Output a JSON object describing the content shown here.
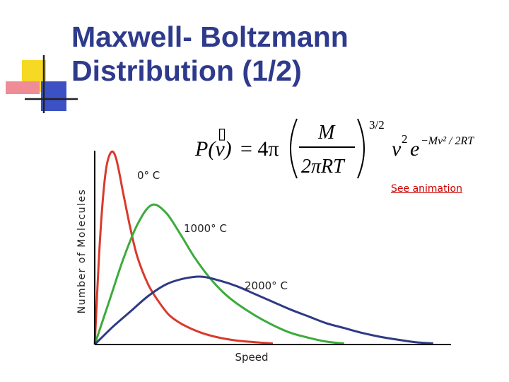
{
  "slide": {
    "title_line1": "Maxwell- Boltzmann",
    "title_line2": "Distribution (1/2)",
    "link_text": "See animation"
  },
  "formula": {
    "lhs": "P(v)",
    "equals": "= 4π",
    "numerator": "M",
    "denominator": "2πRT",
    "exponent": "3/2",
    "v_squared": "v",
    "v_exp": "2",
    "e": "e",
    "e_exp": "−Mv² / 2RT",
    "placeholder_box": "▯"
  },
  "colors": {
    "title": "#2e3a8c",
    "link": "#cc0000",
    "series_0C": "#d93a2b",
    "series_1000C": "#3cab3c",
    "series_2000C": "#2e3a86",
    "axis": "#000000"
  },
  "chart_data": {
    "type": "line",
    "xlabel": "Speed",
    "ylabel": "Number of Molecules",
    "xlim": [
      0,
      10
    ],
    "ylim": [
      0,
      1
    ],
    "grid": false,
    "series": [
      {
        "name": "0° C",
        "x": [
          0,
          0.15,
          0.3,
          0.45,
          0.6,
          0.8,
          1.0,
          1.2,
          1.5,
          1.8,
          2.1,
          2.5,
          3.0,
          3.5,
          4.0,
          4.5,
          5.0
        ],
        "y": [
          0.0,
          0.55,
          0.88,
          0.99,
          0.96,
          0.78,
          0.6,
          0.45,
          0.31,
          0.22,
          0.15,
          0.1,
          0.06,
          0.035,
          0.02,
          0.012,
          0.005
        ]
      },
      {
        "name": "1000° C",
        "x": [
          0,
          0.4,
          0.8,
          1.2,
          1.6,
          2.0,
          2.4,
          2.8,
          3.2,
          3.6,
          4.0,
          4.5,
          5.0,
          5.5,
          6.0,
          6.5,
          7.0
        ],
        "y": [
          0.0,
          0.22,
          0.44,
          0.62,
          0.72,
          0.68,
          0.57,
          0.45,
          0.35,
          0.27,
          0.21,
          0.15,
          0.1,
          0.06,
          0.035,
          0.015,
          0.005
        ]
      },
      {
        "name": "2000° C",
        "x": [
          0,
          0.5,
          1.0,
          1.5,
          2.0,
          2.5,
          3.0,
          3.5,
          4.0,
          4.5,
          5.0,
          5.5,
          6.0,
          6.5,
          7.0,
          7.5,
          8.0,
          8.5,
          9.0,
          9.5
        ],
        "y": [
          0.0,
          0.09,
          0.17,
          0.25,
          0.31,
          0.34,
          0.35,
          0.33,
          0.3,
          0.26,
          0.22,
          0.18,
          0.145,
          0.11,
          0.085,
          0.06,
          0.04,
          0.025,
          0.012,
          0.006
        ]
      }
    ],
    "annotations": [
      {
        "text": "0° C",
        "series": "0° C"
      },
      {
        "text": "1000° C",
        "series": "1000° C"
      },
      {
        "text": "2000° C",
        "series": "2000° C"
      }
    ]
  }
}
